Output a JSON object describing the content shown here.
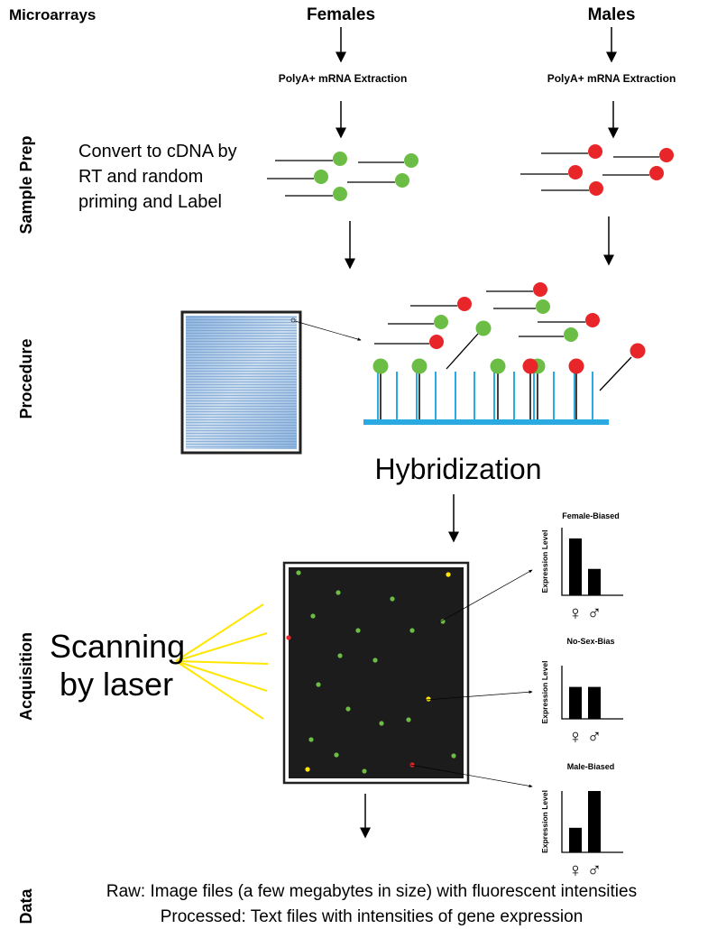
{
  "header": {
    "microarrays": "Microarrays",
    "females": "Females",
    "males": "Males"
  },
  "extraction": {
    "female": "PolyA+ mRNA Extraction",
    "male": "PolyA+ mRNA Extraction"
  },
  "rows": {
    "sample_prep": "Sample Prep",
    "procedure": "Procedure",
    "acquisition": "Acquisition",
    "data": "Data"
  },
  "convert_text": [
    "Convert to cDNA by",
    "RT and random",
    "priming and Label"
  ],
  "hybridization": "Hybridization",
  "scanning": [
    "Scanning",
    "by laser"
  ],
  "data_text": [
    "Raw: Image files (a few megabytes in size) with fluorescent intensities",
    "Processed: Text files with intensities of gene expression"
  ],
  "colors": {
    "green": "#6cbd45",
    "red": "#e8262a",
    "yellow": "#ffe600",
    "probe": "#29abe2"
  },
  "chart_data": [
    {
      "type": "bar",
      "title": "Female-Biased",
      "ylabel": "Expression Level",
      "categories": [
        "♀",
        "♂"
      ],
      "values": [
        0.84,
        0.39
      ],
      "ylim": [
        0,
        1
      ]
    },
    {
      "type": "bar",
      "title": "No-Sex-Bias",
      "ylabel": "Expression Level",
      "categories": [
        "♀",
        "♂"
      ],
      "values": [
        0.6,
        0.6
      ],
      "ylim": [
        0,
        1
      ]
    },
    {
      "type": "bar",
      "title": "Male-Biased",
      "ylabel": "Expression Level",
      "categories": [
        "♀",
        "♂"
      ],
      "values": [
        0.4,
        1.0
      ],
      "ylim": [
        0,
        1
      ]
    }
  ]
}
